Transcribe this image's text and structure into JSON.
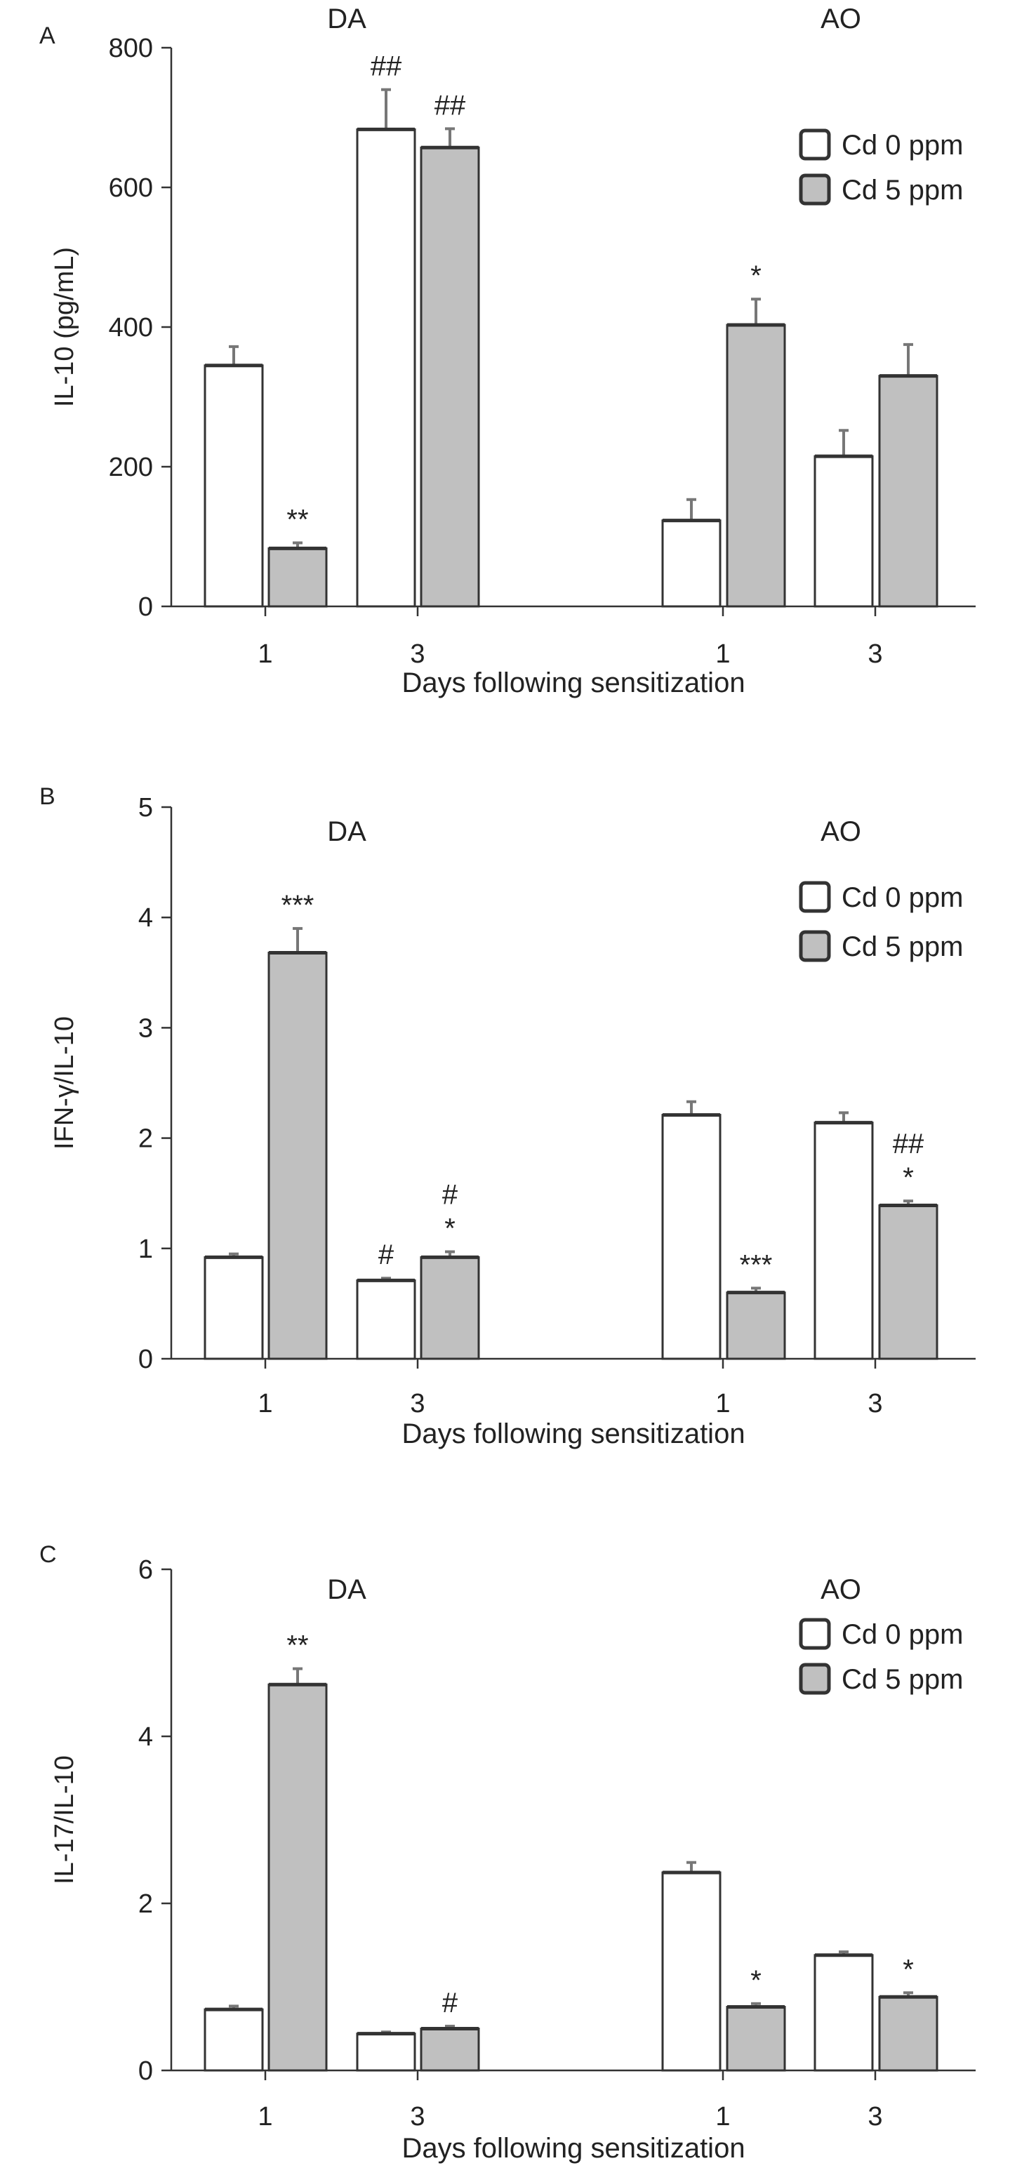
{
  "figure": {
    "legend": [
      {
        "label": "Cd 0 ppm",
        "color": "#ffffff"
      },
      {
        "label": "Cd 5 ppm",
        "color": "#c0c0c0"
      }
    ]
  },
  "chart_data": [
    {
      "type": "bar",
      "panel_label": "A",
      "ylabel": "IL-10 (pg/mL)",
      "xlabel": "Days following sensitization",
      "ylim": [
        0,
        800
      ],
      "yticks": [
        0,
        200,
        400,
        600,
        800
      ],
      "legend_position": "top-right",
      "groups": [
        {
          "name": "DA",
          "categories": [
            {
              "day": "1",
              "bars": [
                {
                  "series": "Cd 0 ppm",
                  "value": 345,
                  "error": 27,
                  "annotation": ""
                },
                {
                  "series": "Cd 5 ppm",
                  "value": 83,
                  "error": 8,
                  "annotation": "**"
                }
              ]
            },
            {
              "day": "3",
              "bars": [
                {
                  "series": "Cd 0 ppm",
                  "value": 683,
                  "error": 57,
                  "annotation": "##"
                },
                {
                  "series": "Cd 5 ppm",
                  "value": 657,
                  "error": 27,
                  "annotation": "##"
                }
              ]
            }
          ]
        },
        {
          "name": "AO",
          "categories": [
            {
              "day": "1",
              "bars": [
                {
                  "series": "Cd 0 ppm",
                  "value": 123,
                  "error": 30,
                  "annotation": ""
                },
                {
                  "series": "Cd 5 ppm",
                  "value": 403,
                  "error": 37,
                  "annotation": "*"
                }
              ]
            },
            {
              "day": "3",
              "bars": [
                {
                  "series": "Cd 0 ppm",
                  "value": 215,
                  "error": 37,
                  "annotation": ""
                },
                {
                  "series": "Cd 5 ppm",
                  "value": 330,
                  "error": 45,
                  "annotation": ""
                }
              ]
            }
          ]
        }
      ]
    },
    {
      "type": "bar",
      "panel_label": "B",
      "ylabel": "IFN-γ/IL-10",
      "xlabel": "Days following sensitization",
      "ylim": [
        0,
        5
      ],
      "yticks": [
        0,
        1,
        2,
        3,
        4,
        5
      ],
      "legend_position": "top-right",
      "groups": [
        {
          "name": "DA",
          "categories": [
            {
              "day": "1",
              "bars": [
                {
                  "series": "Cd 0 ppm",
                  "value": 0.92,
                  "error": 0.03,
                  "annotation": ""
                },
                {
                  "series": "Cd 5 ppm",
                  "value": 3.68,
                  "error": 0.22,
                  "annotation": "***"
                }
              ]
            },
            {
              "day": "3",
              "bars": [
                {
                  "series": "Cd 0 ppm",
                  "value": 0.71,
                  "error": 0.02,
                  "annotation": "#"
                },
                {
                  "series": "Cd 5 ppm",
                  "value": 0.92,
                  "error": 0.05,
                  "annotation": "*\n#"
                }
              ]
            }
          ]
        },
        {
          "name": "AO",
          "categories": [
            {
              "day": "1",
              "bars": [
                {
                  "series": "Cd 0 ppm",
                  "value": 2.21,
                  "error": 0.12,
                  "annotation": ""
                },
                {
                  "series": "Cd 5 ppm",
                  "value": 0.6,
                  "error": 0.04,
                  "annotation": "***"
                }
              ]
            },
            {
              "day": "3",
              "bars": [
                {
                  "series": "Cd 0 ppm",
                  "value": 2.14,
                  "error": 0.09,
                  "annotation": ""
                },
                {
                  "series": "Cd 5 ppm",
                  "value": 1.39,
                  "error": 0.04,
                  "annotation": "*\n##"
                }
              ]
            }
          ]
        }
      ]
    },
    {
      "type": "bar",
      "panel_label": "C",
      "ylabel": "IL-17/IL-10",
      "xlabel": "Days following sensitization",
      "ylim": [
        0,
        6
      ],
      "yticks": [
        0,
        2,
        4,
        6
      ],
      "legend_position": "top-right",
      "groups": [
        {
          "name": "DA",
          "categories": [
            {
              "day": "1",
              "bars": [
                {
                  "series": "Cd 0 ppm",
                  "value": 0.73,
                  "error": 0.04,
                  "annotation": ""
                },
                {
                  "series": "Cd 5 ppm",
                  "value": 4.62,
                  "error": 0.19,
                  "annotation": "**"
                }
              ]
            },
            {
              "day": "3",
              "bars": [
                {
                  "series": "Cd 0 ppm",
                  "value": 0.44,
                  "error": 0.02,
                  "annotation": ""
                },
                {
                  "series": "Cd 5 ppm",
                  "value": 0.5,
                  "error": 0.03,
                  "annotation": "#"
                }
              ]
            }
          ]
        },
        {
          "name": "AO",
          "categories": [
            {
              "day": "1",
              "bars": [
                {
                  "series": "Cd 0 ppm",
                  "value": 2.37,
                  "error": 0.12,
                  "annotation": ""
                },
                {
                  "series": "Cd 5 ppm",
                  "value": 0.76,
                  "error": 0.04,
                  "annotation": "*"
                }
              ]
            },
            {
              "day": "3",
              "bars": [
                {
                  "series": "Cd 0 ppm",
                  "value": 1.38,
                  "error": 0.04,
                  "annotation": ""
                },
                {
                  "series": "Cd 5 ppm",
                  "value": 0.88,
                  "error": 0.05,
                  "annotation": "*"
                }
              ]
            }
          ]
        }
      ]
    }
  ]
}
